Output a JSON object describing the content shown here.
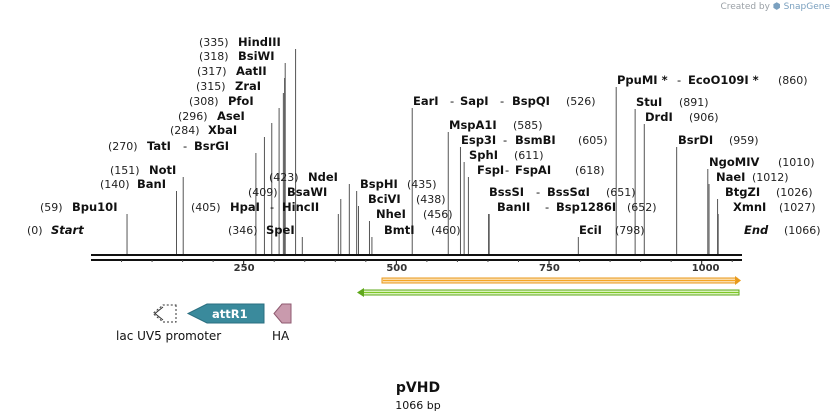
{
  "credit": {
    "prefix": "Created by",
    "brand": "SnapGene"
  },
  "map": {
    "name": "pVHD",
    "length_label": "1066 bp",
    "length": 1066,
    "start_label": "Start",
    "start_pos": "(0)",
    "end_label": "End",
    "end_pos": "(1066)",
    "ticks": [
      "250",
      "500",
      "750",
      "1000"
    ]
  },
  "sites": [
    {
      "id": "bpu10i",
      "pos": "(59)",
      "names": [
        "Bpu10I"
      ]
    },
    {
      "id": "bani140",
      "pos": "(140)",
      "names": [
        "BanI"
      ]
    },
    {
      "id": "noti",
      "pos": "(151)",
      "names": [
        "NotI"
      ]
    },
    {
      "id": "tati",
      "pos": "(270)",
      "names": [
        "TatI",
        "BsrGI"
      ]
    },
    {
      "id": "xbai",
      "pos": "(284)",
      "names": [
        "XbaI"
      ]
    },
    {
      "id": "asei",
      "pos": "(296)",
      "names": [
        "AseI"
      ]
    },
    {
      "id": "pfoi",
      "pos": "(308)",
      "names": [
        "PfoI"
      ]
    },
    {
      "id": "zrai",
      "pos": "(315)",
      "names": [
        "ZraI"
      ]
    },
    {
      "id": "aatii",
      "pos": "(317)",
      "names": [
        "AatII"
      ]
    },
    {
      "id": "bsiwi",
      "pos": "(318)",
      "names": [
        "BsiWI"
      ]
    },
    {
      "id": "hindiii",
      "pos": "(335)",
      "names": [
        "HindIII"
      ]
    },
    {
      "id": "spei",
      "pos": "(346)",
      "names": [
        "SpeI"
      ]
    },
    {
      "id": "hpai",
      "pos": "(405)",
      "names": [
        "HpaI",
        "HincII"
      ]
    },
    {
      "id": "bsawi",
      "pos": "(409)",
      "names": [
        "BsaWI"
      ]
    },
    {
      "id": "ndei",
      "pos": "(423)",
      "names": [
        "NdeI"
      ]
    },
    {
      "id": "bsphi",
      "pos": "(435)",
      "names": [
        "BspHI"
      ]
    },
    {
      "id": "bcivi",
      "pos": "(438)",
      "names": [
        "BciVI"
      ]
    },
    {
      "id": "nhei",
      "pos": "(456)",
      "names": [
        "NheI"
      ]
    },
    {
      "id": "bmti",
      "pos": "(460)",
      "names": [
        "BmtI"
      ]
    },
    {
      "id": "eari",
      "pos": "(526)",
      "names": [
        "EarI",
        "SapI",
        "BspQI"
      ]
    },
    {
      "id": "mspa1i",
      "pos": "(585)",
      "names": [
        "MspA1I"
      ]
    },
    {
      "id": "esp3i",
      "pos": "(605)",
      "names": [
        "Esp3I",
        "BsmBI"
      ]
    },
    {
      "id": "sphi",
      "pos": "(611)",
      "names": [
        "SphI"
      ]
    },
    {
      "id": "fspi",
      "pos": "(618)",
      "names": [
        "FspI",
        "FspAI"
      ]
    },
    {
      "id": "bssi",
      "pos": "(651)",
      "names": [
        "BssSI",
        "BssSαI"
      ]
    },
    {
      "id": "banii",
      "pos": "(652)",
      "names": [
        "BanII",
        "Bsp1286I"
      ]
    },
    {
      "id": "ecii",
      "pos": "(798)",
      "names": [
        "EciI"
      ]
    },
    {
      "id": "ppumi",
      "pos": "(860)",
      "names": [
        "PpuMI *",
        "EcoO109I *"
      ]
    },
    {
      "id": "stui",
      "pos": "(891)",
      "names": [
        "StuI"
      ]
    },
    {
      "id": "drdi",
      "pos": "(906)",
      "names": [
        "DrdI"
      ]
    },
    {
      "id": "bsrdi",
      "pos": "(959)",
      "names": [
        "BsrDI"
      ]
    },
    {
      "id": "ngomiv",
      "pos": "(1010)",
      "names": [
        "NgoMIV"
      ]
    },
    {
      "id": "naei",
      "pos": "(1012)",
      "names": [
        "NaeI"
      ]
    },
    {
      "id": "btgzi",
      "pos": "(1026)",
      "names": [
        "BtgZI"
      ]
    },
    {
      "id": "xmni",
      "pos": "(1027)",
      "names": [
        "XmnI"
      ]
    }
  ],
  "features": [
    {
      "id": "lac-uv5-promoter",
      "label": "lac UV5 promoter",
      "color": "#ffffff"
    },
    {
      "id": "attr1",
      "label": "attR1",
      "color": "#3a8a9c"
    },
    {
      "id": "ha",
      "label": "HA",
      "color": "#c99aad"
    },
    {
      "id": "orange-feature",
      "label": "",
      "color": "#f6a623"
    },
    {
      "id": "green-feature",
      "label": "",
      "color": "#7ec825"
    }
  ]
}
